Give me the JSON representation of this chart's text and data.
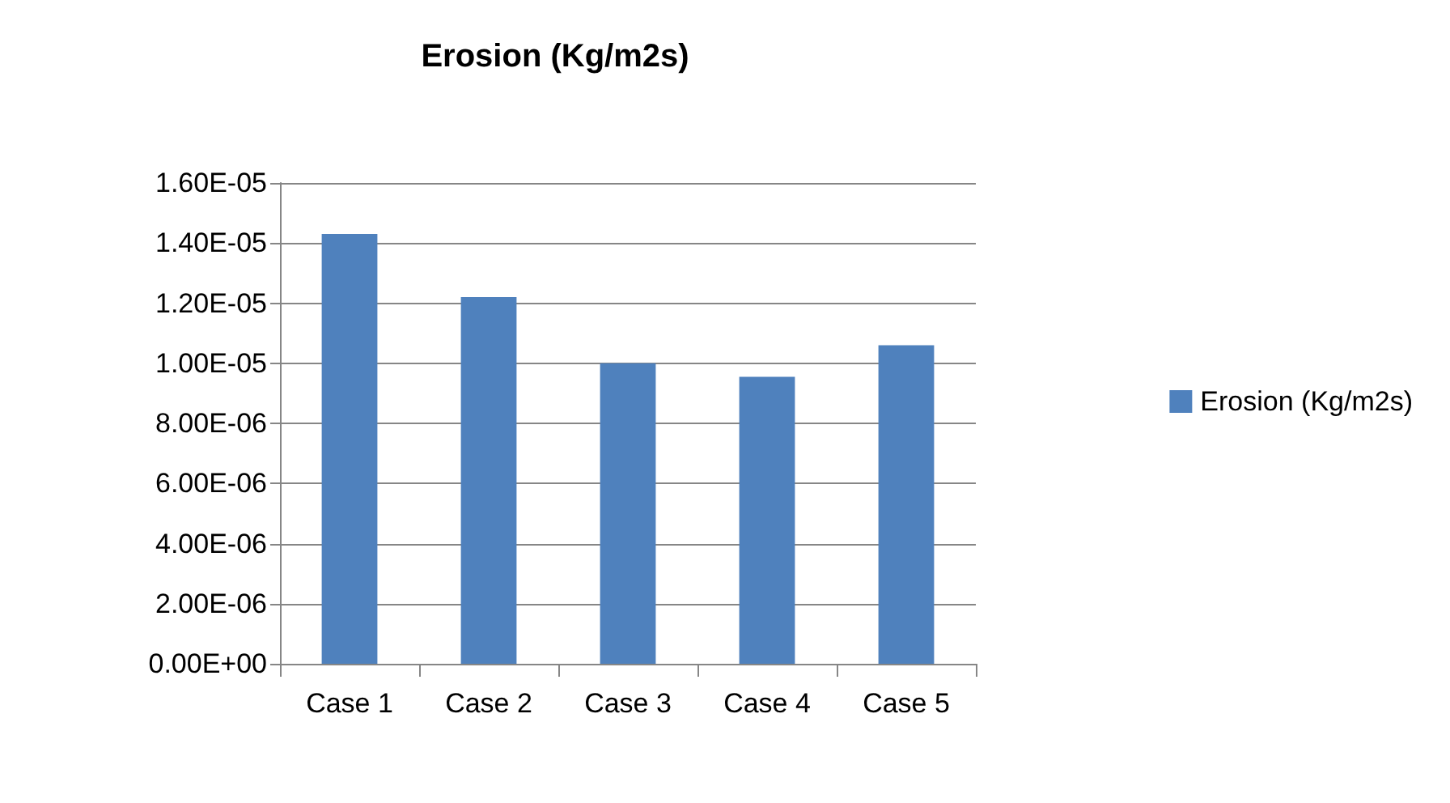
{
  "chart_data": {
    "type": "bar",
    "title": "Erosion (Kg/m2s)",
    "categories": [
      "Case 1",
      "Case 2",
      "Case 3",
      "Case 4",
      "Case 5"
    ],
    "series": [
      {
        "name": "Erosion (Kg/m2s)",
        "color": "#4f81bd",
        "values": [
          1.43e-05,
          1.22e-05,
          1e-05,
          9.55e-06,
          1.06e-05
        ]
      }
    ],
    "ylim": [
      0,
      1.6e-05
    ],
    "yticks": [
      {
        "value": 0,
        "label": "0.00E+00"
      },
      {
        "value": 2e-06,
        "label": "2.00E-06"
      },
      {
        "value": 4e-06,
        "label": "4.00E-06"
      },
      {
        "value": 6e-06,
        "label": "6.00E-06"
      },
      {
        "value": 8e-06,
        "label": "8.00E-06"
      },
      {
        "value": 1e-05,
        "label": "1.00E-05"
      },
      {
        "value": 1.2e-05,
        "label": "1.20E-05"
      },
      {
        "value": 1.4e-05,
        "label": "1.40E-05"
      },
      {
        "value": 1.6e-05,
        "label": "1.60E-05"
      }
    ],
    "grid": "y",
    "legend": "right"
  }
}
